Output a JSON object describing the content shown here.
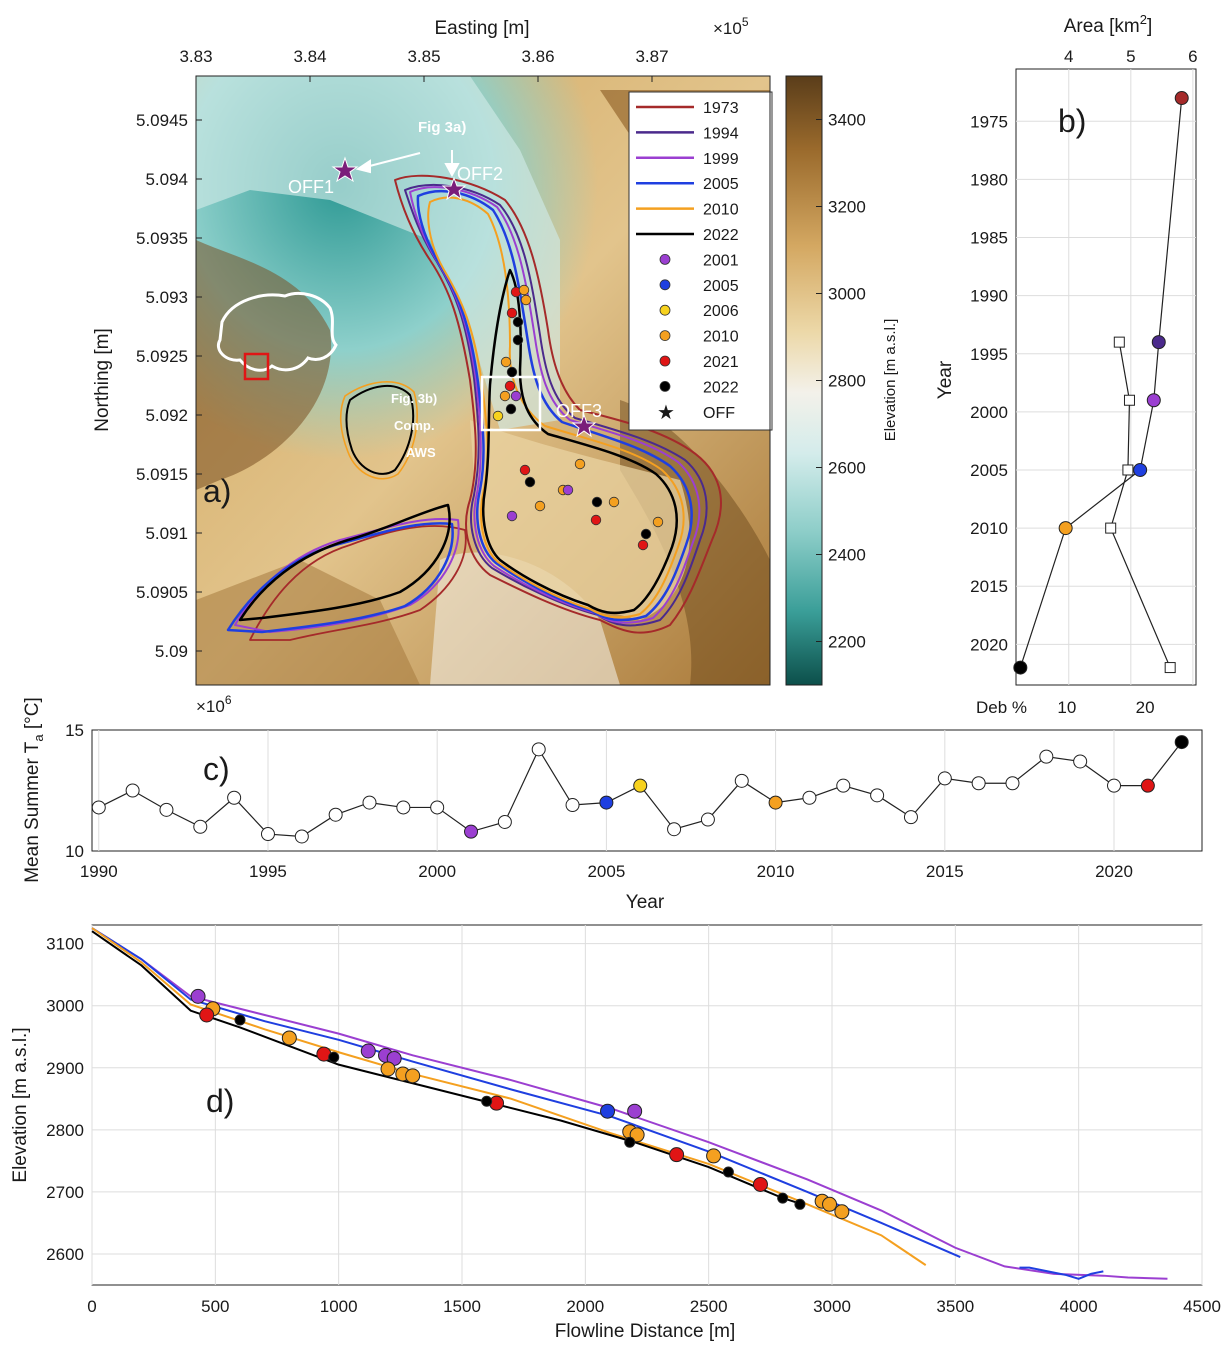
{
  "chart_data": [
    {
      "panel": "a)",
      "type": "map",
      "xlabel": "Easting [m]",
      "ylabel": "Northing [m]",
      "x_exponent_label": "×10",
      "x_exponent": "5",
      "y_exponent_label": "×10",
      "y_exponent": "6",
      "xticks": [
        "3.83",
        "3.84",
        "3.85",
        "3.86",
        "3.87"
      ],
      "yticks": [
        "5.0945",
        "5.094",
        "5.0935",
        "5.093",
        "5.0925",
        "5.092",
        "5.0915",
        "5.091",
        "5.0905",
        "5.09"
      ],
      "colorbar": {
        "label": "Elevation [m a.s.l.]",
        "ticks": [
          "3400",
          "3200",
          "3000",
          "2800",
          "2600",
          "2400",
          "2200"
        ],
        "range": [
          2100,
          3500
        ]
      },
      "annotations": [
        "Fig 3a)",
        "OFF1",
        "OFF2",
        "OFF3",
        "Fig. 3b)",
        "Comp.",
        "AWS"
      ],
      "legend": {
        "outlines": [
          {
            "name": "1973",
            "color": "#a52a2a"
          },
          {
            "name": "1994",
            "color": "#4b2a8c"
          },
          {
            "name": "1999",
            "color": "#9b3fd1"
          },
          {
            "name": "2005",
            "color": "#1f3fe0"
          },
          {
            "name": "2010",
            "color": "#f4a020"
          },
          {
            "name": "2022",
            "color": "#000000"
          }
        ],
        "points": [
          {
            "name": "2001",
            "color": "#9b3fd1"
          },
          {
            "name": "2005",
            "color": "#1f3fe0"
          },
          {
            "name": "2006",
            "color": "#f7d21e"
          },
          {
            "name": "2010",
            "color": "#f4a020"
          },
          {
            "name": "2021",
            "color": "#e01515"
          },
          {
            "name": "2022",
            "color": "#000000"
          }
        ],
        "star": {
          "name": "OFF",
          "color": "#7a1e7a"
        }
      }
    },
    {
      "panel": "b)",
      "type": "scatter",
      "top_xlabel": "Area [km",
      "top_xlabel_sup": "2",
      "top_xlabel_end": "]",
      "bottom_xlabel": "Deb %",
      "ylabel": "Year",
      "top_xticks": [
        "4",
        "5",
        "6"
      ],
      "bottom_xticks": [
        "10",
        "20"
      ],
      "yticks": [
        "1975",
        "1980",
        "1985",
        "1990",
        "1995",
        "2000",
        "2005",
        "2010",
        "2015",
        "2020"
      ],
      "area_xlim": [
        3.15,
        6.05
      ],
      "deb_xlim": [
        3.5,
        26.5
      ],
      "ylim": [
        1970.5,
        2023.5
      ],
      "area_series": [
        {
          "year": 1973,
          "area": 5.82,
          "color": "#a52a2a"
        },
        {
          "year": 1994,
          "area": 5.45,
          "color": "#4b2a8c"
        },
        {
          "year": 1999,
          "area": 5.37,
          "color": "#9b3fd1"
        },
        {
          "year": 2005,
          "area": 5.15,
          "color": "#1f3fe0"
        },
        {
          "year": 2010,
          "area": 3.95,
          "color": "#f4a020"
        },
        {
          "year": 2022,
          "area": 3.22,
          "color": "#000000"
        }
      ],
      "debris_series": [
        {
          "year": 1994,
          "deb": 16.7
        },
        {
          "year": 1999,
          "deb": 18.0
        },
        {
          "year": 2005,
          "deb": 17.8
        },
        {
          "year": 2010,
          "deb": 15.6
        },
        {
          "year": 2022,
          "deb": 23.2
        }
      ]
    },
    {
      "panel": "c)",
      "type": "line",
      "xlabel": "Year",
      "ylabel": "Mean Summer T",
      "ylabel_sub": "a",
      "ylabel_end": " [°C]",
      "xticks": [
        "1990",
        "1995",
        "2000",
        "2005",
        "2010",
        "2015",
        "2020"
      ],
      "yticks": [
        "15",
        "10"
      ],
      "xlim": [
        1989.8,
        2022.6
      ],
      "ylim": [
        10,
        15
      ],
      "x": [
        1990,
        1991,
        1992,
        1993,
        1994,
        1995,
        1996,
        1997,
        1998,
        1999,
        2000,
        2001,
        2002,
        2003,
        2004,
        2005,
        2006,
        2007,
        2008,
        2009,
        2010,
        2011,
        2012,
        2013,
        2014,
        2015,
        2016,
        2017,
        2018,
        2019,
        2020,
        2021,
        2022
      ],
      "y": [
        11.8,
        12.5,
        11.7,
        11.0,
        12.2,
        10.7,
        10.6,
        11.5,
        12.0,
        11.8,
        11.8,
        10.8,
        11.2,
        14.2,
        11.9,
        12.0,
        12.7,
        10.9,
        11.3,
        12.9,
        12.0,
        12.2,
        12.7,
        12.3,
        11.4,
        13.0,
        12.8,
        12.8,
        13.9,
        13.7,
        12.7,
        12.7,
        14.5
      ],
      "highlight": [
        {
          "year": 2001,
          "color": "#9b3fd1"
        },
        {
          "year": 2005,
          "color": "#1f3fe0"
        },
        {
          "year": 2006,
          "color": "#f7d21e"
        },
        {
          "year": 2010,
          "color": "#f4a020"
        },
        {
          "year": 2021,
          "color": "#e01515"
        },
        {
          "year": 2022,
          "color": "#000000"
        }
      ]
    },
    {
      "panel": "d)",
      "type": "line",
      "xlabel": "Flowline Distance [m]",
      "ylabel": "Elevation [m a.s.l.]",
      "xticks": [
        "0",
        "500",
        "1000",
        "1500",
        "2000",
        "2500",
        "3000",
        "3500",
        "4000",
        "4500"
      ],
      "yticks": [
        "3100",
        "3000",
        "2900",
        "2800",
        "2700",
        "2600"
      ],
      "xlim": [
        0,
        4500
      ],
      "ylim": [
        2550,
        3130
      ],
      "series": [
        {
          "name": "2001",
          "color": "#9b3fd1",
          "x": [
            0,
            200,
            400,
            700,
            1000,
            1300,
            1700,
            2100,
            2500,
            2900,
            3200,
            3500,
            3700,
            3900,
            4100,
            4200,
            4360
          ],
          "y": [
            3125,
            3075,
            3015,
            2985,
            2955,
            2920,
            2880,
            2835,
            2780,
            2720,
            2670,
            2610,
            2580,
            2568,
            2565,
            2562,
            2560
          ]
        },
        {
          "name": "2005",
          "color": "#1f3fe0",
          "x": [
            0,
            200,
            400,
            700,
            1000,
            1300,
            1700,
            2100,
            2500,
            2900,
            3200,
            3520
          ],
          "y": [
            3125,
            3075,
            3010,
            2975,
            2945,
            2910,
            2865,
            2822,
            2765,
            2700,
            2650,
            2595
          ]
        },
        {
          "name": "2005b",
          "color": "#1f3fe0",
          "x": [
            3760,
            3800,
            3900,
            3950,
            4000,
            4050,
            4100
          ],
          "y": [
            2578,
            2578,
            2570,
            2566,
            2560,
            2568,
            2572
          ]
        },
        {
          "name": "2010",
          "color": "#f4a020",
          "x": [
            0,
            200,
            400,
            700,
            1000,
            1300,
            1700,
            2100,
            2500,
            2900,
            3200,
            3380
          ],
          "y": [
            3125,
            3070,
            3002,
            2962,
            2925,
            2890,
            2850,
            2795,
            2745,
            2680,
            2630,
            2582
          ]
        },
        {
          "name": "2022",
          "color": "#000000",
          "x": [
            0,
            200,
            400,
            600,
            800,
            1000,
            1300,
            1600,
            1900,
            2200,
            2500,
            2800,
            2880
          ],
          "y": [
            3120,
            3065,
            2992,
            2965,
            2935,
            2905,
            2875,
            2845,
            2815,
            2780,
            2740,
            2690,
            2680
          ]
        }
      ],
      "points": [
        {
          "x": 430,
          "y": 3015,
          "color": "#9b3fd1"
        },
        {
          "x": 1120,
          "y": 2927,
          "color": "#9b3fd1"
        },
        {
          "x": 1190,
          "y": 2920,
          "color": "#9b3fd1"
        },
        {
          "x": 1225,
          "y": 2915,
          "color": "#9b3fd1"
        },
        {
          "x": 2200,
          "y": 2830,
          "color": "#9b3fd1"
        },
        {
          "x": 2090,
          "y": 2830,
          "color": "#1f3fe0"
        },
        {
          "x": 490,
          "y": 2995,
          "color": "#f4a020"
        },
        {
          "x": 800,
          "y": 2948,
          "color": "#f4a020"
        },
        {
          "x": 1200,
          "y": 2898,
          "color": "#f4a020"
        },
        {
          "x": 1260,
          "y": 2890,
          "color": "#f4a020"
        },
        {
          "x": 1300,
          "y": 2887,
          "color": "#f4a020"
        },
        {
          "x": 2180,
          "y": 2797,
          "color": "#f4a020"
        },
        {
          "x": 2210,
          "y": 2792,
          "color": "#f4a020"
        },
        {
          "x": 2520,
          "y": 2758,
          "color": "#f4a020"
        },
        {
          "x": 2960,
          "y": 2685,
          "color": "#f4a020"
        },
        {
          "x": 2990,
          "y": 2680,
          "color": "#f4a020"
        },
        {
          "x": 3040,
          "y": 2668,
          "color": "#f4a020"
        },
        {
          "x": 465,
          "y": 2985,
          "color": "#e01515"
        },
        {
          "x": 940,
          "y": 2922,
          "color": "#e01515"
        },
        {
          "x": 1640,
          "y": 2843,
          "color": "#e01515"
        },
        {
          "x": 2370,
          "y": 2760,
          "color": "#e01515"
        },
        {
          "x": 2710,
          "y": 2712,
          "color": "#e01515"
        },
        {
          "x": 600,
          "y": 2977,
          "color": "#000000"
        },
        {
          "x": 980,
          "y": 2917,
          "color": "#000000"
        },
        {
          "x": 1600,
          "y": 2846,
          "color": "#000000"
        },
        {
          "x": 2180,
          "y": 2780,
          "color": "#000000"
        },
        {
          "x": 2580,
          "y": 2732,
          "color": "#000000"
        },
        {
          "x": 2800,
          "y": 2690,
          "color": "#000000"
        },
        {
          "x": 2870,
          "y": 2680,
          "color": "#000000"
        }
      ]
    }
  ]
}
